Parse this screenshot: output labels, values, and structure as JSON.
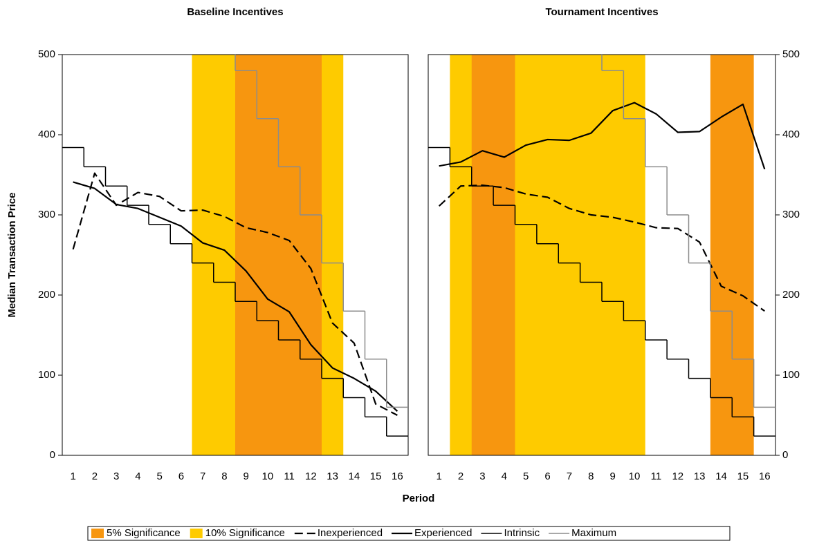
{
  "figure": {
    "xlabel": "Period",
    "ylabel": "Median Transaction Price",
    "significance": [
      {
        "name": "5% Significance",
        "color": "#f7960f"
      },
      {
        "name": "10% Significance",
        "color": "#fecb00"
      }
    ]
  },
  "chart_data": [
    {
      "type": "line",
      "title": "Baseline Incentives",
      "yaxis_side": "left",
      "x": [
        1,
        2,
        3,
        4,
        5,
        6,
        7,
        8,
        9,
        10,
        11,
        12,
        13,
        14,
        15,
        16
      ],
      "xlim": [
        0.5,
        16.5
      ],
      "ylim": [
        0,
        500
      ],
      "yticks": [
        0,
        100,
        200,
        300,
        400,
        500
      ],
      "bands": [
        {
          "level": 1,
          "from": 6.5,
          "to": 13.5
        },
        {
          "level": 0,
          "from": 8.5,
          "to": 12.5
        }
      ],
      "series": [
        {
          "name": "Inexperienced",
          "color": "#000000",
          "style": "dashed",
          "values": [
            257,
            352,
            312,
            328,
            323,
            305,
            306,
            298,
            284,
            278,
            268,
            233,
            165,
            140,
            64,
            50
          ]
        },
        {
          "name": "Experienced",
          "color": "#000000",
          "style": "solid",
          "values": [
            341,
            333,
            313,
            308,
            297,
            286,
            265,
            256,
            230,
            195,
            179,
            138,
            109,
            96,
            80,
            55
          ]
        },
        {
          "name": "Intrinsic",
          "color": "#000000",
          "style": "step",
          "values": [
            384,
            360,
            336,
            312,
            288,
            264,
            240,
            216,
            192,
            168,
            144,
            120,
            96,
            72,
            48,
            24
          ]
        },
        {
          "name": "Maximum",
          "color": "#8c8c8c",
          "style": "step",
          "values": [
            null,
            null,
            null,
            null,
            null,
            null,
            null,
            null,
            480,
            420,
            360,
            300,
            240,
            180,
            120,
            60
          ]
        }
      ]
    },
    {
      "type": "line",
      "title": "Tournament Incentives",
      "yaxis_side": "right",
      "x": [
        1,
        2,
        3,
        4,
        5,
        6,
        7,
        8,
        9,
        10,
        11,
        12,
        13,
        14,
        15,
        16
      ],
      "xlim": [
        0.5,
        16.5
      ],
      "ylim": [
        0,
        500
      ],
      "yticks": [
        0,
        100,
        200,
        300,
        400,
        500
      ],
      "bands": [
        {
          "level": 1,
          "from": 1.5,
          "to": 10.5
        },
        {
          "level": 0,
          "from": 2.5,
          "to": 4.5
        },
        {
          "level": 0,
          "from": 13.5,
          "to": 15.5
        }
      ],
      "series": [
        {
          "values": [
            311,
            336,
            337,
            334,
            326,
            322,
            308,
            300,
            297,
            291,
            284,
            283,
            266,
            211,
            199,
            180
          ]
        },
        {
          "values": [
            361,
            366,
            380,
            372,
            387,
            394,
            393,
            402,
            430,
            440,
            426,
            403,
            404,
            422,
            438,
            357
          ]
        },
        {
          "values": [
            384,
            360,
            336,
            312,
            288,
            264,
            240,
            216,
            192,
            168,
            144,
            120,
            96,
            72,
            48,
            24
          ]
        },
        {
          "values": [
            null,
            null,
            null,
            null,
            null,
            null,
            null,
            null,
            480,
            420,
            360,
            300,
            240,
            180,
            120,
            60
          ]
        }
      ]
    }
  ]
}
